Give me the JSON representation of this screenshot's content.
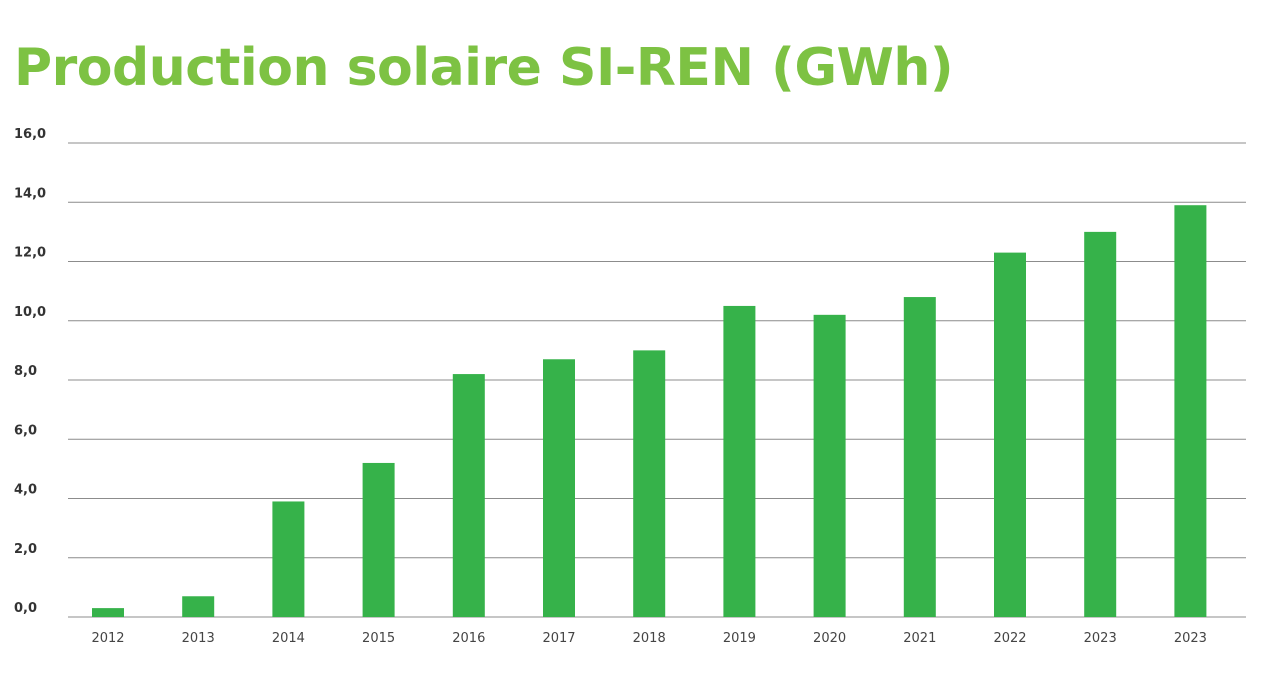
{
  "colors": {
    "title": "#7dc243",
    "bar": "#36b24a",
    "grid": "#8c8c8c"
  },
  "chart_data": {
    "type": "bar",
    "title": "Production solaire SI-REN (GWh)",
    "xlabel": "",
    "ylabel": "",
    "ylim": [
      0,
      16
    ],
    "y_ticks": [
      "0,0",
      "2,0",
      "4,0",
      "6,0",
      "8,0",
      "10,0",
      "12,0",
      "14,0",
      "16,0"
    ],
    "grid": true,
    "legend": "none",
    "categories": [
      "2012",
      "2013",
      "2014",
      "2015",
      "2016",
      "2017",
      "2018",
      "2019",
      "2020",
      "2021",
      "2022",
      "2023",
      "2023"
    ],
    "values": [
      0.3,
      0.7,
      3.9,
      5.2,
      8.2,
      8.7,
      9.0,
      10.5,
      10.2,
      10.8,
      12.3,
      13.0,
      13.9
    ]
  }
}
